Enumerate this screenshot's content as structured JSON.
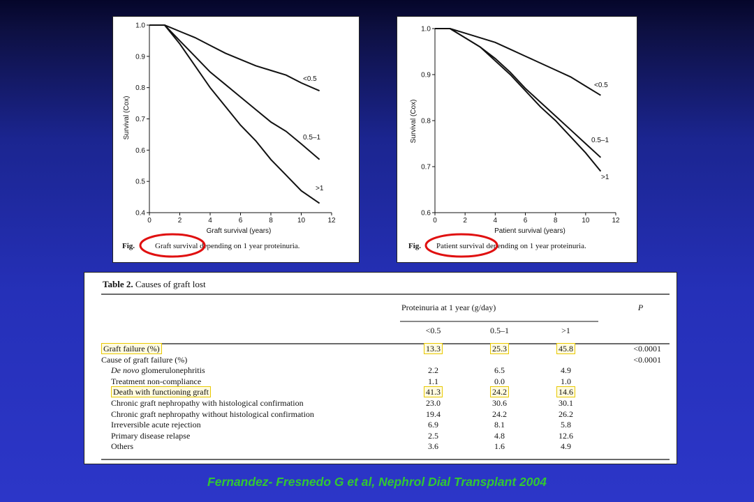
{
  "chart_data": [
    {
      "type": "line",
      "ylabel": "Survival (Cox)",
      "xlabel": "Graft survival (years)",
      "xlim": [
        0,
        12
      ],
      "ylim": [
        0.4,
        1.0
      ],
      "x_ticks": [
        0,
        2,
        4,
        6,
        8,
        10,
        12
      ],
      "y_ticks": [
        0.4,
        0.5,
        0.6,
        0.7,
        0.8,
        0.9,
        1.0
      ],
      "series": [
        {
          "name": "<0.5",
          "x": [
            0,
            1,
            2,
            3,
            4,
            5,
            6,
            7,
            8,
            9,
            10,
            11.2
          ],
          "y": [
            1.0,
            1.0,
            0.98,
            0.96,
            0.935,
            0.91,
            0.89,
            0.87,
            0.855,
            0.84,
            0.815,
            0.79
          ]
        },
        {
          "name": "0.5–1",
          "x": [
            0,
            1,
            2,
            3,
            4,
            5,
            6,
            7,
            8,
            9,
            10,
            11.2
          ],
          "y": [
            1.0,
            1.0,
            0.95,
            0.9,
            0.85,
            0.81,
            0.77,
            0.73,
            0.69,
            0.66,
            0.62,
            0.57
          ]
        },
        {
          "name": ">1",
          "x": [
            0,
            1,
            2,
            3,
            4,
            5,
            6,
            7,
            8,
            9,
            10,
            11.2
          ],
          "y": [
            1.0,
            1.0,
            0.94,
            0.87,
            0.8,
            0.74,
            0.68,
            0.63,
            0.57,
            0.52,
            0.47,
            0.43
          ]
        }
      ],
      "caption_prefix": "Fig.",
      "caption_text": "Graft survival depending on 1 year proteinuria."
    },
    {
      "type": "line",
      "ylabel": "Survival (Cox)",
      "xlabel": "Patient survival (years)",
      "xlim": [
        0,
        12
      ],
      "ylim": [
        0.6,
        1.0
      ],
      "x_ticks": [
        0,
        2,
        4,
        6,
        8,
        10,
        12
      ],
      "y_ticks": [
        0.6,
        0.7,
        0.8,
        0.9,
        1.0
      ],
      "series": [
        {
          "name": "<0.5",
          "x": [
            0,
            1,
            2,
            3,
            4,
            5,
            6,
            7,
            8,
            9,
            10,
            11
          ],
          "y": [
            1.0,
            1.0,
            0.99,
            0.98,
            0.97,
            0.955,
            0.94,
            0.925,
            0.91,
            0.895,
            0.875,
            0.855
          ]
        },
        {
          "name": "0.5–1",
          "x": [
            0,
            1,
            2,
            3,
            4,
            5,
            6,
            7,
            8,
            9,
            10,
            11
          ],
          "y": [
            1.0,
            1.0,
            0.98,
            0.96,
            0.935,
            0.905,
            0.87,
            0.84,
            0.81,
            0.78,
            0.75,
            0.72
          ]
        },
        {
          "name": ">1",
          "x": [
            0,
            1,
            2,
            3,
            4,
            5,
            6,
            7,
            8,
            9,
            10,
            11
          ],
          "y": [
            1.0,
            1.0,
            0.98,
            0.96,
            0.93,
            0.9,
            0.865,
            0.83,
            0.8,
            0.765,
            0.73,
            0.69
          ]
        }
      ],
      "caption_prefix": "Fig.",
      "caption_text": "Patient survival depending on 1 year proteinuria."
    },
    {
      "type": "table",
      "title_prefix": "Table 2.",
      "title_text": "Causes of graft lost",
      "group_header": "Proteinuria at 1 year (g/day)",
      "p_header": "P",
      "columns": [
        "<0.5",
        "0.5–1",
        ">1"
      ],
      "rows": [
        {
          "label": "Graft failure (%)",
          "values": [
            "13.3",
            "25.3",
            "45.8"
          ],
          "p": "<0.0001",
          "highlight": true,
          "indent": false
        },
        {
          "label": "Cause of graft failure (%)",
          "values": [
            "",
            "",
            ""
          ],
          "p": "<0.0001",
          "highlight": false,
          "indent": false
        },
        {
          "label_em": "De novo",
          "label": " glomerulonephritis",
          "values": [
            "2.2",
            "6.5",
            "4.9"
          ],
          "p": "",
          "highlight": false,
          "indent": true
        },
        {
          "label": "Treatment non-compliance",
          "values": [
            "1.1",
            "0.0",
            "1.0"
          ],
          "p": "",
          "highlight": false,
          "indent": true
        },
        {
          "label": "Death with functioning graft",
          "values": [
            "41.3",
            "24.2",
            "14.6"
          ],
          "p": "",
          "highlight": true,
          "indent": true
        },
        {
          "label": "Chronic graft nephropathy with histological confirmation",
          "values": [
            "23.0",
            "30.6",
            "30.1"
          ],
          "p": "",
          "highlight": false,
          "indent": true
        },
        {
          "label": "Chronic graft nephropathy without histological confirmation",
          "values": [
            "19.4",
            "24.2",
            "26.2"
          ],
          "p": "",
          "highlight": false,
          "indent": true
        },
        {
          "label": "Irreversible acute rejection",
          "values": [
            "6.9",
            "8.1",
            "5.8"
          ],
          "p": "",
          "highlight": false,
          "indent": true
        },
        {
          "label": "Primary disease relapse",
          "values": [
            "2.5",
            "4.8",
            "12.6"
          ],
          "p": "",
          "highlight": false,
          "indent": true
        },
        {
          "label": "Others",
          "values": [
            "3.6",
            "1.6",
            "4.9"
          ],
          "p": "",
          "highlight": false,
          "indent": true
        }
      ]
    }
  ],
  "citation": "Fernandez- Fresnedo G et al,  Nephrol Dial Transplant 2004",
  "colors": {
    "highlight_ring": "#e01010",
    "highlight_box": "#e8c800",
    "citation": "#32c832"
  }
}
